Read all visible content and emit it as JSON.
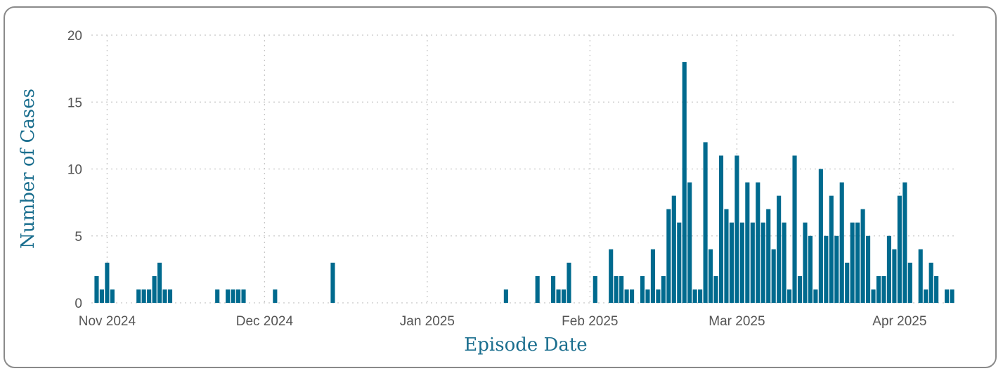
{
  "chart_data": {
    "type": "bar",
    "title": "",
    "xlabel": "Episode Date",
    "ylabel": "Number of Cases",
    "ylim": [
      0,
      20
    ],
    "yticks": [
      0,
      5,
      10,
      15,
      20
    ],
    "xlim": [
      "2024-10-29",
      "2025-04-12"
    ],
    "xticks": [
      {
        "date": "2024-11-01",
        "label": "Nov 2024"
      },
      {
        "date": "2024-12-01",
        "label": "Dec 2024"
      },
      {
        "date": "2025-01-01",
        "label": "Jan 2025"
      },
      {
        "date": "2025-02-01",
        "label": "Feb 2025"
      },
      {
        "date": "2025-03-01",
        "label": "Mar 2025"
      },
      {
        "date": "2025-04-01",
        "label": "Apr 2025"
      }
    ],
    "grid": true,
    "bar_color": "#006a8e",
    "text_color": "#1a6e8e",
    "points": [
      {
        "x": "2024-10-30",
        "y": 2
      },
      {
        "x": "2024-10-31",
        "y": 1
      },
      {
        "x": "2024-11-01",
        "y": 3
      },
      {
        "x": "2024-11-02",
        "y": 1
      },
      {
        "x": "2024-11-07",
        "y": 1
      },
      {
        "x": "2024-11-08",
        "y": 1
      },
      {
        "x": "2024-11-09",
        "y": 1
      },
      {
        "x": "2024-11-10",
        "y": 2
      },
      {
        "x": "2024-11-11",
        "y": 3
      },
      {
        "x": "2024-11-12",
        "y": 1
      },
      {
        "x": "2024-11-13",
        "y": 1
      },
      {
        "x": "2024-11-22",
        "y": 1
      },
      {
        "x": "2024-11-24",
        "y": 1
      },
      {
        "x": "2024-11-25",
        "y": 1
      },
      {
        "x": "2024-11-26",
        "y": 1
      },
      {
        "x": "2024-11-27",
        "y": 1
      },
      {
        "x": "2024-12-03",
        "y": 1
      },
      {
        "x": "2024-12-14",
        "y": 3
      },
      {
        "x": "2025-01-16",
        "y": 1
      },
      {
        "x": "2025-01-22",
        "y": 2
      },
      {
        "x": "2025-01-25",
        "y": 2
      },
      {
        "x": "2025-01-26",
        "y": 1
      },
      {
        "x": "2025-01-27",
        "y": 1
      },
      {
        "x": "2025-01-28",
        "y": 3
      },
      {
        "x": "2025-02-02",
        "y": 2
      },
      {
        "x": "2025-02-05",
        "y": 4
      },
      {
        "x": "2025-02-06",
        "y": 2
      },
      {
        "x": "2025-02-07",
        "y": 2
      },
      {
        "x": "2025-02-08",
        "y": 1
      },
      {
        "x": "2025-02-09",
        "y": 1
      },
      {
        "x": "2025-02-11",
        "y": 2
      },
      {
        "x": "2025-02-12",
        "y": 1
      },
      {
        "x": "2025-02-13",
        "y": 4
      },
      {
        "x": "2025-02-14",
        "y": 1
      },
      {
        "x": "2025-02-15",
        "y": 2
      },
      {
        "x": "2025-02-16",
        "y": 7
      },
      {
        "x": "2025-02-17",
        "y": 8
      },
      {
        "x": "2025-02-18",
        "y": 6
      },
      {
        "x": "2025-02-19",
        "y": 18
      },
      {
        "x": "2025-02-20",
        "y": 9
      },
      {
        "x": "2025-02-21",
        "y": 1
      },
      {
        "x": "2025-02-22",
        "y": 1
      },
      {
        "x": "2025-02-23",
        "y": 12
      },
      {
        "x": "2025-02-24",
        "y": 4
      },
      {
        "x": "2025-02-25",
        "y": 2
      },
      {
        "x": "2025-02-26",
        "y": 11
      },
      {
        "x": "2025-02-27",
        "y": 7
      },
      {
        "x": "2025-02-28",
        "y": 6
      },
      {
        "x": "2025-03-01",
        "y": 11
      },
      {
        "x": "2025-03-02",
        "y": 6
      },
      {
        "x": "2025-03-03",
        "y": 9
      },
      {
        "x": "2025-03-04",
        "y": 6
      },
      {
        "x": "2025-03-05",
        "y": 9
      },
      {
        "x": "2025-03-06",
        "y": 6
      },
      {
        "x": "2025-03-07",
        "y": 7
      },
      {
        "x": "2025-03-08",
        "y": 4
      },
      {
        "x": "2025-03-09",
        "y": 8
      },
      {
        "x": "2025-03-10",
        "y": 6
      },
      {
        "x": "2025-03-11",
        "y": 1
      },
      {
        "x": "2025-03-12",
        "y": 11
      },
      {
        "x": "2025-03-13",
        "y": 2
      },
      {
        "x": "2025-03-14",
        "y": 6
      },
      {
        "x": "2025-03-15",
        "y": 5
      },
      {
        "x": "2025-03-16",
        "y": 1
      },
      {
        "x": "2025-03-17",
        "y": 10
      },
      {
        "x": "2025-03-18",
        "y": 5
      },
      {
        "x": "2025-03-19",
        "y": 8
      },
      {
        "x": "2025-03-20",
        "y": 5
      },
      {
        "x": "2025-03-21",
        "y": 9
      },
      {
        "x": "2025-03-22",
        "y": 3
      },
      {
        "x": "2025-03-23",
        "y": 6
      },
      {
        "x": "2025-03-24",
        "y": 6
      },
      {
        "x": "2025-03-25",
        "y": 7
      },
      {
        "x": "2025-03-26",
        "y": 5
      },
      {
        "x": "2025-03-27",
        "y": 1
      },
      {
        "x": "2025-03-28",
        "y": 2
      },
      {
        "x": "2025-03-29",
        "y": 2
      },
      {
        "x": "2025-03-30",
        "y": 5
      },
      {
        "x": "2025-03-31",
        "y": 4
      },
      {
        "x": "2025-04-01",
        "y": 8
      },
      {
        "x": "2025-04-02",
        "y": 9
      },
      {
        "x": "2025-04-03",
        "y": 3
      },
      {
        "x": "2025-04-05",
        "y": 4
      },
      {
        "x": "2025-04-06",
        "y": 1
      },
      {
        "x": "2025-04-07",
        "y": 3
      },
      {
        "x": "2025-04-08",
        "y": 2
      },
      {
        "x": "2025-04-10",
        "y": 1
      },
      {
        "x": "2025-04-11",
        "y": 1
      }
    ]
  }
}
